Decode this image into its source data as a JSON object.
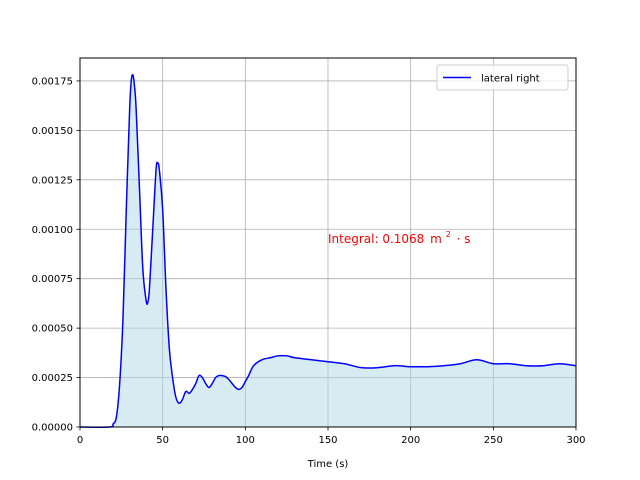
{
  "chart_data": {
    "type": "area",
    "title": "",
    "xlabel": "Time (s)",
    "ylabel": "",
    "xlim": [
      0,
      300
    ],
    "ylim": [
      0,
      0.001866
    ],
    "grid": true,
    "legend_position": "top-right",
    "xticks": [
      0,
      50,
      100,
      150,
      200,
      250,
      300
    ],
    "xtick_labels": [
      "0",
      "50",
      "100",
      "150",
      "200",
      "250",
      "300"
    ],
    "yticks": [
      0,
      0.00025,
      0.0005,
      0.00075,
      0.001,
      0.00125,
      0.0015,
      0.00175
    ],
    "ytick_labels": [
      "0.00000",
      "0.00025",
      "0.00050",
      "0.00075",
      "0.00100",
      "0.00125",
      "0.00150",
      "0.00175"
    ],
    "series": [
      {
        "name": "lateral right",
        "color": "#0000ff",
        "fill": "#add8e6",
        "x": [
          0,
          18,
          20,
          22,
          24,
          26,
          28,
          30,
          31,
          32,
          33,
          34,
          36,
          38,
          40,
          41,
          42,
          44,
          46,
          47,
          48,
          50,
          52,
          54,
          56,
          58,
          60,
          62,
          64,
          66,
          68,
          70,
          72,
          74,
          76,
          78,
          80,
          82,
          84,
          86,
          88,
          90,
          92,
          94,
          96,
          98,
          100,
          102,
          105,
          110,
          115,
          120,
          125,
          130,
          140,
          150,
          160,
          170,
          180,
          190,
          200,
          210,
          220,
          230,
          240,
          250,
          260,
          270,
          280,
          290,
          300
        ],
        "y": [
          0,
          0,
          1.5e-05,
          5e-05,
          0.00022,
          0.00055,
          0.0011,
          0.0016,
          0.00175,
          0.00178,
          0.00172,
          0.0016,
          0.0012,
          0.0008,
          0.00064,
          0.00063,
          0.0007,
          0.001,
          0.0013,
          0.001335,
          0.0013,
          0.0011,
          0.0007,
          0.0004,
          0.00025,
          0.00015,
          0.00012,
          0.00014,
          0.00018,
          0.00017,
          0.00019,
          0.00022,
          0.00026,
          0.00025,
          0.00022,
          0.0002,
          0.00022,
          0.00025,
          0.00026,
          0.00026,
          0.000255,
          0.00024,
          0.00022,
          0.0002,
          0.00019,
          0.0002,
          0.00023,
          0.00026,
          0.00031,
          0.00034,
          0.00035,
          0.00036,
          0.00036,
          0.00035,
          0.00034,
          0.00033,
          0.00032,
          0.0003,
          0.0003,
          0.00031,
          0.000305,
          0.000305,
          0.00031,
          0.00032,
          0.00034,
          0.00032,
          0.00032,
          0.00031,
          0.00031,
          0.00032,
          0.00031
        ]
      }
    ],
    "annotation": {
      "prefix": "Integral: 0.1068",
      "unit_base": "m",
      "unit_exp": "2",
      "unit_suffix": "· s",
      "color": "#ff0000",
      "x": 150,
      "y": 0.00095
    }
  }
}
